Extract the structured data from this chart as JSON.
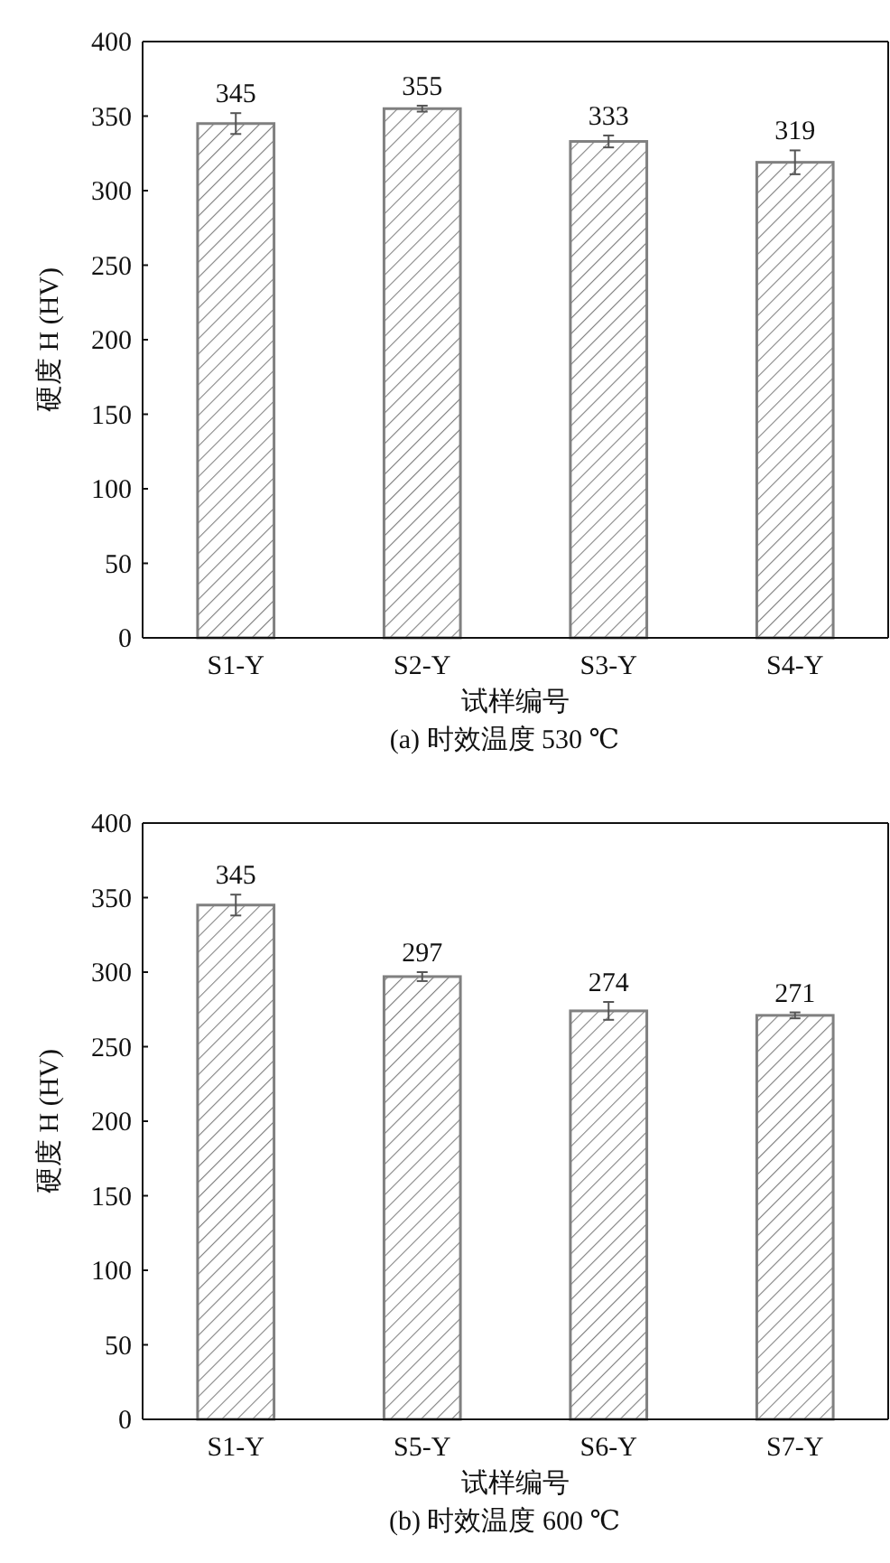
{
  "chart_data": [
    {
      "type": "bar",
      "xlabel": "试样编号",
      "ylabel": "硬度 H (HV)",
      "categories": [
        "S1-Y",
        "S2-Y",
        "S3-Y",
        "S4-Y"
      ],
      "values": [
        345,
        355,
        333,
        319
      ],
      "errors": [
        7,
        2,
        4,
        8
      ],
      "color": "#808080",
      "ylim": [
        0,
        400
      ],
      "yticks": [
        0,
        50,
        100,
        150,
        200,
        250,
        300,
        350,
        400
      ],
      "data_labels": true,
      "annotations": [
        "(a) 时效温度 530 ℃"
      ]
    },
    {
      "type": "bar",
      "xlabel": "试样编号",
      "ylabel": "硬度 H (HV)",
      "categories": [
        "S1-Y",
        "S5-Y",
        "S6-Y",
        "S7-Y"
      ],
      "values": [
        345,
        297,
        274,
        271
      ],
      "errors": [
        7,
        3,
        6,
        2
      ],
      "color": "#808080",
      "ylim": [
        0,
        400
      ],
      "yticks": [
        0,
        50,
        100,
        150,
        200,
        250,
        300,
        350,
        400
      ],
      "data_labels": true,
      "annotations": [
        "(b) 时效温度 600 ℃"
      ]
    }
  ]
}
